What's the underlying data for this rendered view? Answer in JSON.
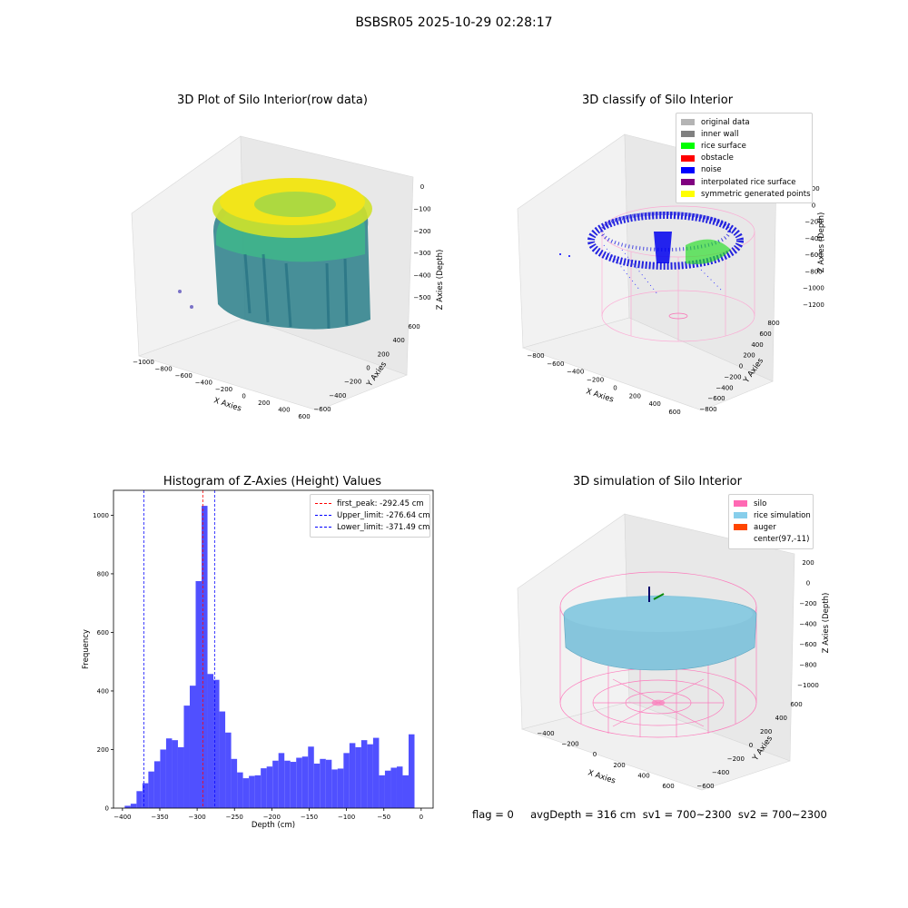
{
  "title": "BSBSR05 2025-10-29 02:28:17",
  "raw_plot": {
    "title": "3D Plot of Silo Interior(row data)",
    "xlabel": "X Axies",
    "ylabel": "Y Axies",
    "zlabel": "Z Axies (Depth)",
    "x_ticks": [
      "−1000",
      "−800",
      "−600",
      "−400",
      "−200",
      "0",
      "200",
      "400",
      "600"
    ],
    "y_ticks": [
      "−600",
      "−400",
      "−200",
      "0",
      "200",
      "400",
      "600"
    ],
    "z_ticks": [
      "0",
      "−100",
      "−200",
      "−300",
      "−400",
      "−500"
    ]
  },
  "classify_plot": {
    "title": "3D classify of Silo Interior",
    "xlabel": "X Axies",
    "ylabel": "Y Axies",
    "zlabel": "Z Axies (Depth)",
    "x_ticks": [
      "−800",
      "−600",
      "−400",
      "−200",
      "0",
      "200",
      "400",
      "600"
    ],
    "y_ticks": [
      "−800",
      "−600",
      "−400",
      "−200",
      "0",
      "200",
      "400",
      "600",
      "800"
    ],
    "z_ticks": [
      "200",
      "0",
      "−200",
      "−400",
      "−600",
      "−800",
      "−1000",
      "−1200"
    ],
    "legend": [
      {
        "label": "original data",
        "color": "#b4b4b4"
      },
      {
        "label": "inner wall",
        "color": "#808080"
      },
      {
        "label": "rice surface",
        "color": "#00ff00"
      },
      {
        "label": "obstacle",
        "color": "#ff0000"
      },
      {
        "label": "noise",
        "color": "#0000ff"
      },
      {
        "label": "interpolated rice surface",
        "color": "#800080"
      },
      {
        "label": "symmetric generated points",
        "color": "#ffff00"
      }
    ]
  },
  "histogram": {
    "title": "Histogram of Z-Axies (Height) Values",
    "xlabel": "Depth (cm)",
    "ylabel": "Frequency",
    "legend": [
      {
        "label": "first_peak: -292.45 cm",
        "color": "#ff0000"
      },
      {
        "label": "Upper_limit: -276.64 cm",
        "color": "#0000ff"
      },
      {
        "label": "Lower_limit: -371.49 cm",
        "color": "#0000ff"
      }
    ]
  },
  "sim_plot": {
    "title": "3D simulation of Silo Interior",
    "xlabel": "X Axies",
    "ylabel": "Y Axies",
    "zlabel": "Z Axies (Depth)",
    "x_ticks": [
      "−400",
      "−200",
      "0",
      "200",
      "400",
      "600"
    ],
    "y_ticks": [
      "−600",
      "−400",
      "−200",
      "0",
      "200",
      "400",
      "600"
    ],
    "z_ticks": [
      "200",
      "0",
      "−200",
      "−400",
      "−600",
      "−800",
      "−1000"
    ],
    "legend": [
      {
        "label": "silo",
        "color": "#ff69b4"
      },
      {
        "label": "rice simulation",
        "color": "#87ceeb"
      },
      {
        "label": "auger",
        "color": "#ff4500"
      },
      {
        "label": "center(97,-11)",
        "color": "#ffffff"
      }
    ]
  },
  "footer": "flag = 0     avgDepth = 316 cm  sv1 = 700~2300  sv2 = 700~2300",
  "chart_data": [
    {
      "type": "bar",
      "title": "Histogram of Z-Axies (Height) Values",
      "xlabel": "Depth (cm)",
      "ylabel": "Frequency",
      "xlim": [
        -412,
        16
      ],
      "ylim": [
        0,
        1085
      ],
      "x_ticks": [
        -400,
        -350,
        -300,
        -250,
        -200,
        -150,
        -100,
        -50,
        0
      ],
      "y_ticks": [
        0,
        200,
        400,
        600,
        800,
        1000
      ],
      "bin_start": -397,
      "bin_width": 7.92,
      "values": [
        8,
        15,
        58,
        85,
        125,
        160,
        200,
        238,
        232,
        208,
        350,
        418,
        775,
        1032,
        458,
        438,
        330,
        258,
        168,
        122,
        102,
        110,
        112,
        136,
        142,
        162,
        188,
        162,
        158,
        172,
        176,
        210,
        152,
        168,
        165,
        132,
        135,
        188,
        222,
        208,
        232,
        218,
        240,
        112,
        128,
        138,
        142,
        112,
        252
      ],
      "lines": [
        {
          "name": "first_peak",
          "x": -292.45,
          "color": "#ff0000"
        },
        {
          "name": "Upper_limit",
          "x": -276.64,
          "color": "#0000ff"
        },
        {
          "name": "Lower_limit",
          "x": -371.49,
          "color": "#0000ff"
        }
      ],
      "bar_color": "#5050ff"
    }
  ]
}
